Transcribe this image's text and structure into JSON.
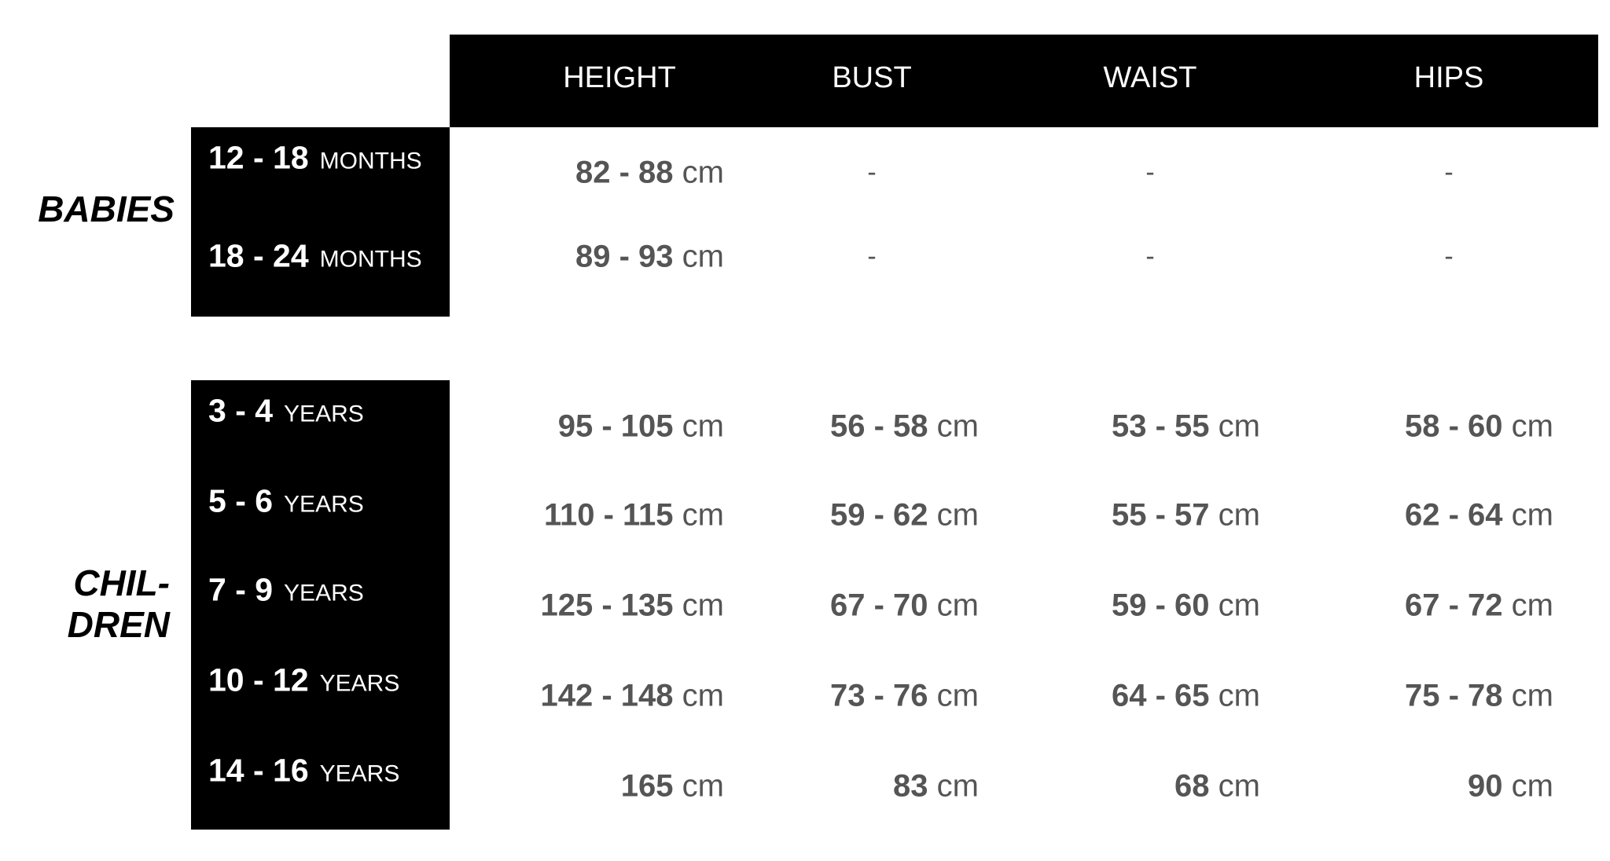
{
  "columns": [
    "HEIGHT",
    "BUST",
    "WAIST",
    "HIPS"
  ],
  "groups": [
    {
      "label": "BABIES",
      "rows": [
        {
          "range": "12 - 18",
          "unit": "MONTHS",
          "height": "82 - 88",
          "bust": "-",
          "waist": "-",
          "hips": "-"
        },
        {
          "range": "18 - 24",
          "unit": "MONTHS",
          "height": "89 - 93",
          "bust": "-",
          "waist": "-",
          "hips": "-"
        }
      ]
    },
    {
      "label_line1": "CHIL-",
      "label_line2": "DREN",
      "rows": [
        {
          "range": "3 - 4",
          "unit": "YEARS",
          "height": "95 - 105",
          "bust": "56 - 58",
          "waist": "53 - 55",
          "hips": "58 - 60"
        },
        {
          "range": "5 - 6",
          "unit": "YEARS",
          "height": "110 - 115",
          "bust": "59 - 62",
          "waist": "55 - 57",
          "hips": "62 - 64"
        },
        {
          "range": "7 - 9",
          "unit": "YEARS",
          "height": "125 - 135",
          "bust": "67 - 70",
          "waist": "59 - 60",
          "hips": "67 - 72"
        },
        {
          "range": "10 - 12",
          "unit": "YEARS",
          "height": "142 - 148",
          "bust": "73 - 76",
          "waist": "64 - 65",
          "hips": "75 - 78"
        },
        {
          "range": "14 - 16",
          "unit": "YEARS",
          "height": "165",
          "bust": "83",
          "waist": "68",
          "hips": "90"
        }
      ]
    }
  ],
  "unit_cm": "cm"
}
